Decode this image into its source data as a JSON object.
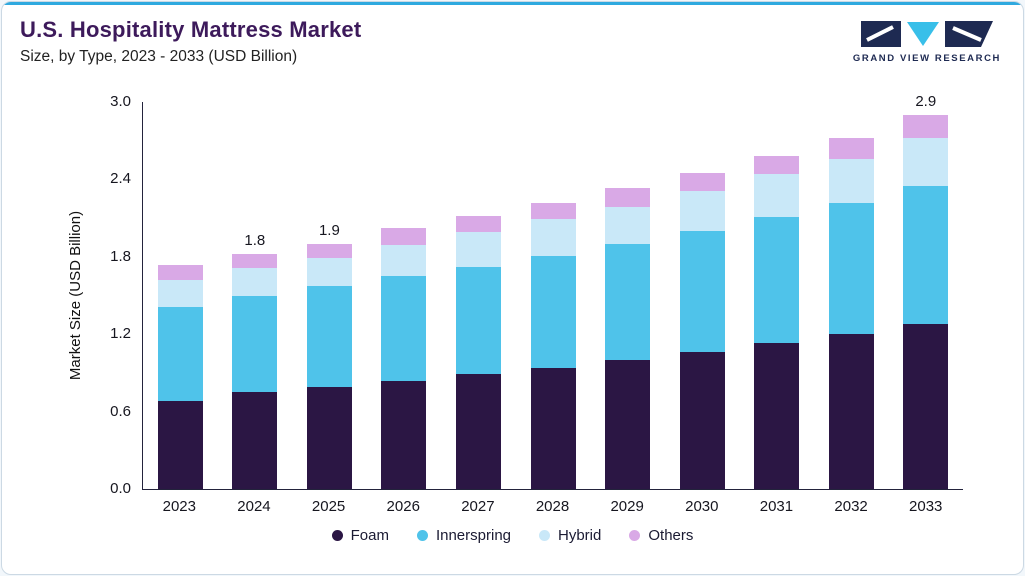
{
  "page": {
    "accent_color": "#2FA9DF",
    "background_color": "#FFFFFF",
    "title_color": "#3D1A5B"
  },
  "header": {
    "title": "U.S. Hospitality Mattress Market",
    "subtitle": "Size, by Type, 2023 - 2033 (USD Billion)"
  },
  "logo": {
    "text": "GRAND VIEW RESEARCH",
    "navy_color": "#1E2A52",
    "teal_color": "#38BFE9"
  },
  "chart_data": {
    "type": "bar",
    "stacked": true,
    "title": "U.S. Hospitality Mattress Market Size, by Type, 2023 - 2033 (USD Billion)",
    "categories": [
      "2023",
      "2024",
      "2025",
      "2026",
      "2027",
      "2028",
      "2029",
      "2030",
      "2031",
      "2032",
      "2033"
    ],
    "series": [
      {
        "name": "Foam",
        "color": "#2B1644",
        "values": [
          0.68,
          0.75,
          0.79,
          0.84,
          0.89,
          0.94,
          1.0,
          1.06,
          1.13,
          1.2,
          1.28
        ]
      },
      {
        "name": "Innerspring",
        "color": "#4FC3EA",
        "values": [
          0.73,
          0.75,
          0.78,
          0.81,
          0.83,
          0.87,
          0.9,
          0.94,
          0.98,
          1.02,
          1.07
        ]
      },
      {
        "name": "Hybrid",
        "color": "#C9E8F8",
        "values": [
          0.21,
          0.21,
          0.22,
          0.24,
          0.27,
          0.28,
          0.29,
          0.31,
          0.33,
          0.34,
          0.37
        ]
      },
      {
        "name": "Others",
        "color": "#D9A9E6",
        "values": [
          0.12,
          0.11,
          0.11,
          0.13,
          0.13,
          0.13,
          0.14,
          0.14,
          0.14,
          0.16,
          0.18
        ]
      }
    ],
    "totals_labels": {
      "2024": "1.8",
      "2025": "1.9",
      "2033": "2.9"
    },
    "xlabel": "",
    "ylabel": "Market Size (USD Billion)",
    "ylim": [
      0.0,
      3.0
    ],
    "yticks": [
      "0.0",
      "0.6",
      "1.2",
      "1.8",
      "2.4",
      "3.0"
    ],
    "grid": false,
    "legend_position": "bottom"
  }
}
